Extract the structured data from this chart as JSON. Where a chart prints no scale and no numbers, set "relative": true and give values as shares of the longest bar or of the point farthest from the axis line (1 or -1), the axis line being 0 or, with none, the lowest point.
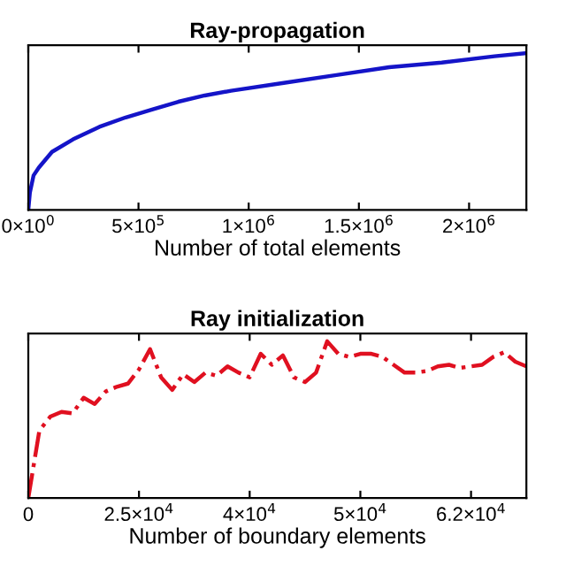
{
  "chart_data": [
    {
      "type": "line",
      "title": "Ray-propagation",
      "xlabel": "Number of total elements",
      "relative": true,
      "line_style": "solid",
      "grid": false,
      "legend": false,
      "xlim": [
        0,
        2260000
      ],
      "xticks": [
        {
          "value": 0,
          "label": "0×10$^{0}$"
        },
        {
          "value": 500000,
          "label": "5×10$^{5}$"
        },
        {
          "value": 1000000,
          "label": "1×10$^{6}$"
        },
        {
          "value": 1500000,
          "label": "1.5×10$^{6}$"
        },
        {
          "value": 2000000,
          "label": "2×10$^{6}$"
        }
      ],
      "series": [
        {
          "color": "#1414c8",
          "x": [
            0,
            7200,
            23900,
            47800,
            107500,
            203000,
            322600,
            442000,
            561500,
            681000,
            800700,
            920000,
            1159000,
            1398000,
            1637000,
            1876000,
            2115000,
            2258000
          ],
          "values": [
            0,
            0.11,
            0.22,
            0.27,
            0.37,
            0.45,
            0.53,
            0.59,
            0.64,
            0.69,
            0.73,
            0.76,
            0.81,
            0.86,
            0.91,
            0.94,
            0.98,
            1.0
          ]
        }
      ]
    },
    {
      "type": "line",
      "title": "Ray initialization",
      "xlabel": "Number of boundary elements",
      "relative": true,
      "line_style": "dashed",
      "grid": false,
      "legend": false,
      "categories": [
        "0",
        null,
        null,
        null,
        null,
        null,
        null,
        null,
        null,
        null,
        "2.5×10$^{4}$",
        null,
        null,
        null,
        null,
        null,
        null,
        null,
        null,
        null,
        "4×10$^{4}$",
        null,
        null,
        null,
        null,
        null,
        null,
        null,
        null,
        null,
        "5×10$^{4}$",
        null,
        null,
        null,
        null,
        null,
        null,
        null,
        null,
        null,
        "6.2×10$^{4}$",
        null,
        null,
        null,
        null,
        null
      ],
      "series": [
        {
          "color": "#e01020",
          "values": [
            0,
            0.43,
            0.52,
            0.55,
            0.54,
            0.64,
            0.6,
            0.68,
            0.71,
            0.73,
            0.82,
            0.95,
            0.77,
            0.69,
            0.79,
            0.74,
            0.8,
            0.78,
            0.84,
            0.8,
            0.77,
            0.92,
            0.85,
            0.91,
            0.77,
            0.74,
            0.8,
            1.0,
            0.92,
            0.9,
            0.92,
            0.92,
            0.9,
            0.85,
            0.8,
            0.8,
            0.81,
            0.84,
            0.85,
            0.83,
            0.84,
            0.85,
            0.9,
            0.93,
            0.87,
            0.84
          ]
        }
      ]
    }
  ]
}
